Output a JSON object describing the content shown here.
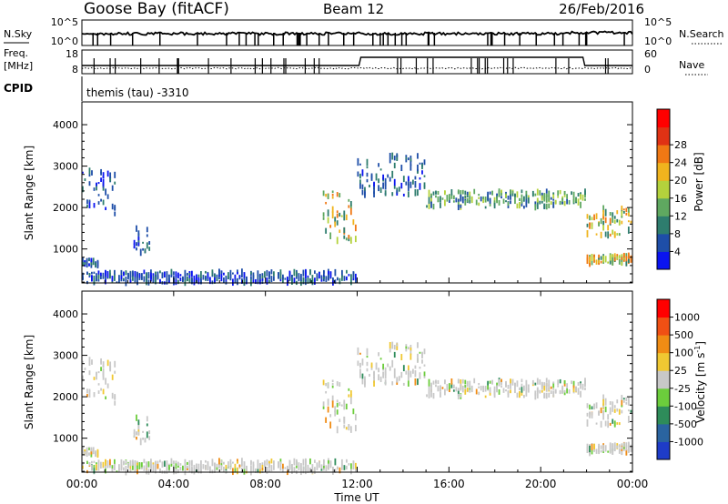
{
  "header": {
    "station": "Goose Bay (fitACF)",
    "beam": "Beam 12",
    "date": "26/Feb/2016"
  },
  "params_panel": {
    "nsky_label": "N.Sky",
    "nsky_ticks": [
      "10^5",
      "10^0"
    ],
    "nsearch_label": "N.Search",
    "nsearch_ticks": [
      "10^5",
      "10^0"
    ],
    "freq_label_1": "Freq.",
    "freq_label_2": "[MHz]",
    "freq_ticks": [
      "18",
      "8"
    ],
    "nave_label": "Nave",
    "nave_ticks": [
      "60",
      "0"
    ],
    "cpid_label": "CPID",
    "cpid_value": "themis (tau) -3310"
  },
  "chart_data": [
    {
      "type": "heatmap",
      "name": "power",
      "ylabel": "Slant Range [km]",
      "xlabel": "Time UT",
      "xlim": [
        "00:00",
        "24:00"
      ],
      "ylim": [
        180,
        4550
      ],
      "yticks": [
        "1000",
        "2000",
        "3000",
        "4000"
      ],
      "xticks": [
        "00:00",
        "04:00",
        "08:00",
        "12:00",
        "16:00",
        "20:00",
        "00:00"
      ],
      "colorbar": {
        "label": "Power [dB]",
        "ticks": [
          "4",
          "8",
          "12",
          "16",
          "20",
          "24",
          "28"
        ],
        "colors": [
          "#0a14f0",
          "#1e4ea8",
          "#2e7d6e",
          "#5fa860",
          "#b4d23c",
          "#f0b41e",
          "#f07814",
          "#e03214",
          "#ff0000"
        ]
      },
      "features": [
        {
          "t_start": "00:00",
          "t_end": "01:30",
          "range_km": [
            1800,
            2900
          ],
          "level": "low"
        },
        {
          "t_start": "00:00",
          "t_end": "00:45",
          "range_km": [
            600,
            750
          ],
          "level": "low"
        },
        {
          "t_start": "02:15",
          "t_end": "03:00",
          "range_km": [
            900,
            1500
          ],
          "level": "low"
        },
        {
          "t_start": "10:30",
          "t_end": "12:00",
          "range_km": [
            1200,
            2400
          ],
          "level": "high"
        },
        {
          "t_start": "12:00",
          "t_end": "15:00",
          "range_km": [
            2300,
            3300
          ],
          "level": "low"
        },
        {
          "t_start": "15:00",
          "t_end": "22:00",
          "range_km": [
            2000,
            2400
          ],
          "level": "medium"
        },
        {
          "t_start": "22:00",
          "t_end": "24:00",
          "range_km": [
            1300,
            2000
          ],
          "level": "high"
        },
        {
          "t_start": "22:00",
          "t_end": "24:00",
          "range_km": [
            650,
            850
          ],
          "level": "high"
        },
        {
          "t_start": "00:00",
          "t_end": "12:00",
          "range_km": [
            180,
            450
          ],
          "level": "low"
        }
      ]
    },
    {
      "type": "heatmap",
      "name": "velocity",
      "ylabel": "Slant Range [km]",
      "xlabel": "Time UT",
      "xlim": [
        "00:00",
        "24:00"
      ],
      "ylim": [
        180,
        4550
      ],
      "yticks": [
        "1000",
        "2000",
        "3000",
        "4000"
      ],
      "xticks": [
        "00:00",
        "04:00",
        "08:00",
        "12:00",
        "16:00",
        "20:00",
        "00:00"
      ],
      "colorbar": {
        "label": "Velocity [m s^-1]",
        "ticks": [
          "1000",
          "500",
          "100",
          "25",
          "-25",
          "-100",
          "-500",
          "-1000"
        ],
        "colors": [
          "#1e3cc8",
          "#2a64a0",
          "#2e8c5a",
          "#6ccd3c",
          "#c8c8c8",
          "#f0c832",
          "#f08c14",
          "#f05014",
          "#ff0000"
        ]
      }
    }
  ]
}
